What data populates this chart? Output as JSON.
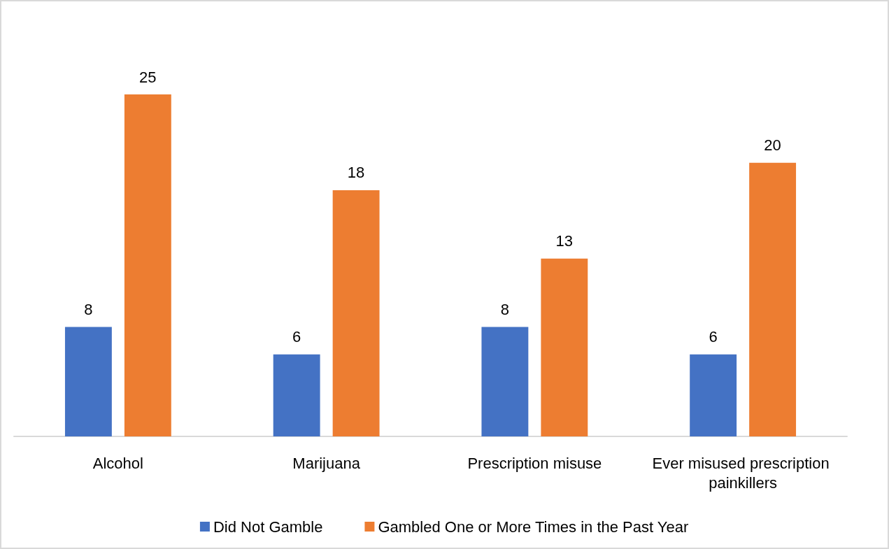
{
  "chart_data": {
    "type": "bar",
    "categories": [
      "Alcohol",
      "Marijuana",
      "Prescription misuse",
      "Ever misused prescription painkillers"
    ],
    "series": [
      {
        "name": "Did Not Gamble",
        "color": "#4472c4",
        "values": [
          8,
          6,
          8,
          6
        ]
      },
      {
        "name": "Gambled One or More Times in the Past Year",
        "color": "#ed7d31",
        "values": [
          25,
          18,
          13,
          20
        ]
      }
    ],
    "data_labels": true,
    "legend": "bottom"
  }
}
